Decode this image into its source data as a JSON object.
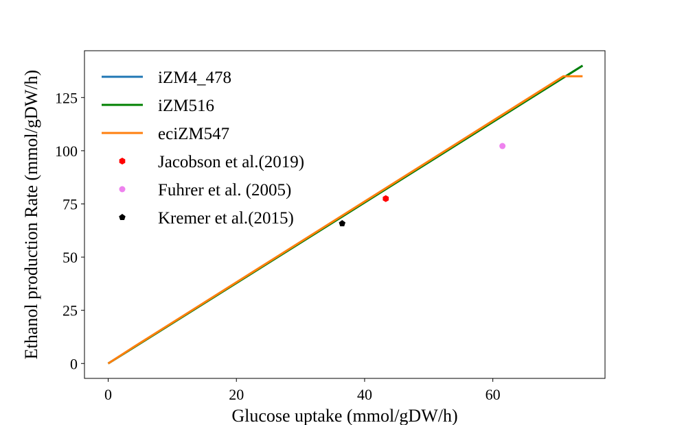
{
  "chart_data": {
    "type": "line",
    "xlabel": "Glucose uptake (mmol/gDW/h)",
    "ylabel": "Ethanol production Rate (mmol/gDW/h)",
    "xlim": [
      -3.7,
      77.5
    ],
    "ylim": [
      -7,
      147
    ],
    "xticks": [
      0,
      20,
      40,
      60
    ],
    "yticks": [
      0,
      25,
      50,
      75,
      100,
      125
    ],
    "grid": false,
    "legend_position": "top-left",
    "series": [
      {
        "name": "iZM4_478",
        "kind": "line",
        "color": "#1f77b4",
        "points": [
          [
            0,
            0
          ],
          [
            74,
            140
          ]
        ]
      },
      {
        "name": "iZM516",
        "kind": "line",
        "color": "#008000",
        "points": [
          [
            0,
            0
          ],
          [
            74,
            140
          ]
        ]
      },
      {
        "name": "eciZM547",
        "kind": "line",
        "color": "#ff7f0e",
        "points": [
          [
            0,
            0
          ],
          [
            4,
            7.8
          ],
          [
            71,
            135
          ],
          [
            74,
            135
          ]
        ]
      },
      {
        "name": "Jacobson et al.(2019)",
        "kind": "point",
        "marker": "hexagon",
        "color": "#ff0000",
        "points": [
          [
            43.3,
            77.5
          ]
        ]
      },
      {
        "name": "Fuhrer et al. (2005)",
        "kind": "point",
        "marker": "circle",
        "color": "#ee82ee",
        "points": [
          [
            61.5,
            102.2
          ]
        ]
      },
      {
        "name": "Kremer et al.(2015)",
        "kind": "point",
        "marker": "pentagon",
        "color": "#000000",
        "points": [
          [
            36.5,
            65.8
          ]
        ]
      }
    ]
  }
}
